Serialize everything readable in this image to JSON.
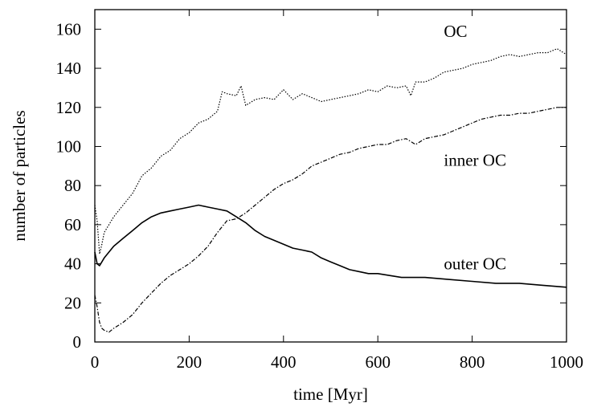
{
  "chart_data": {
    "type": "line",
    "title": "",
    "xlabel": "time [Myr]",
    "ylabel": "number of particles",
    "xlim": [
      0,
      1000
    ],
    "ylim": [
      0,
      170
    ],
    "x_ticks": [
      "0",
      "200",
      "400",
      "600",
      "800",
      "1000"
    ],
    "y_ticks": [
      "0",
      "20",
      "40",
      "60",
      "80",
      "100",
      "120",
      "140",
      "160"
    ],
    "grid": false,
    "legend": "none",
    "series": [
      {
        "name": "OC",
        "style": "dotted",
        "x": [
          0,
          5,
          10,
          15,
          20,
          30,
          40,
          50,
          60,
          80,
          100,
          120,
          140,
          160,
          180,
          200,
          220,
          240,
          260,
          270,
          280,
          300,
          310,
          320,
          340,
          360,
          380,
          400,
          420,
          440,
          460,
          480,
          500,
          520,
          540,
          560,
          580,
          600,
          620,
          640,
          660,
          670,
          680,
          700,
          720,
          740,
          760,
          780,
          800,
          820,
          840,
          860,
          880,
          900,
          920,
          940,
          960,
          980,
          1000
        ],
        "values": [
          70,
          62,
          45,
          50,
          56,
          60,
          64,
          67,
          70,
          76,
          85,
          89,
          95,
          98,
          104,
          107,
          112,
          114,
          118,
          128,
          127,
          126,
          131,
          121,
          124,
          125,
          124,
          129,
          124,
          127,
          125,
          123,
          124,
          125,
          126,
          127,
          129,
          128,
          131,
          130,
          131,
          126,
          133,
          133,
          135,
          138,
          139,
          140,
          142,
          143,
          144,
          146,
          147,
          146,
          147,
          148,
          148,
          150,
          147
        ]
      },
      {
        "name": "inner OC",
        "style": "dashed",
        "x": [
          0,
          5,
          10,
          15,
          20,
          30,
          40,
          60,
          80,
          100,
          120,
          140,
          160,
          180,
          200,
          220,
          240,
          260,
          280,
          300,
          320,
          340,
          360,
          380,
          400,
          420,
          440,
          460,
          480,
          500,
          520,
          540,
          560,
          580,
          600,
          620,
          640,
          660,
          680,
          700,
          720,
          740,
          760,
          780,
          800,
          820,
          840,
          860,
          880,
          900,
          920,
          940,
          960,
          980,
          1000
        ],
        "values": [
          24,
          18,
          10,
          7,
          6,
          5,
          7,
          10,
          14,
          20,
          25,
          30,
          34,
          37,
          40,
          44,
          49,
          56,
          62,
          63,
          66,
          70,
          74,
          78,
          81,
          83,
          86,
          90,
          92,
          94,
          96,
          97,
          99,
          100,
          101,
          101,
          103,
          104,
          101,
          104,
          105,
          106,
          108,
          110,
          112,
          114,
          115,
          116,
          116,
          117,
          117,
          118,
          119,
          120,
          120
        ]
      },
      {
        "name": "outer OC",
        "style": "solid",
        "x": [
          0,
          5,
          10,
          15,
          20,
          30,
          40,
          60,
          80,
          100,
          120,
          140,
          160,
          180,
          200,
          220,
          240,
          260,
          280,
          300,
          320,
          340,
          360,
          380,
          400,
          420,
          440,
          460,
          480,
          500,
          520,
          540,
          560,
          580,
          600,
          650,
          700,
          750,
          800,
          850,
          900,
          950,
          1000
        ],
        "values": [
          46,
          40,
          39,
          41,
          43,
          46,
          49,
          53,
          57,
          61,
          64,
          66,
          67,
          68,
          69,
          70,
          69,
          68,
          67,
          64,
          61,
          57,
          54,
          52,
          50,
          48,
          47,
          46,
          43,
          41,
          39,
          37,
          36,
          35,
          35,
          33,
          33,
          32,
          31,
          30,
          30,
          29,
          28
        ]
      }
    ],
    "annotations": [
      {
        "text": "OC",
        "x": 740,
        "y": 159
      },
      {
        "text": "inner OC",
        "x": 740,
        "y": 93
      },
      {
        "text": "outer OC",
        "x": 740,
        "y": 40
      }
    ]
  }
}
